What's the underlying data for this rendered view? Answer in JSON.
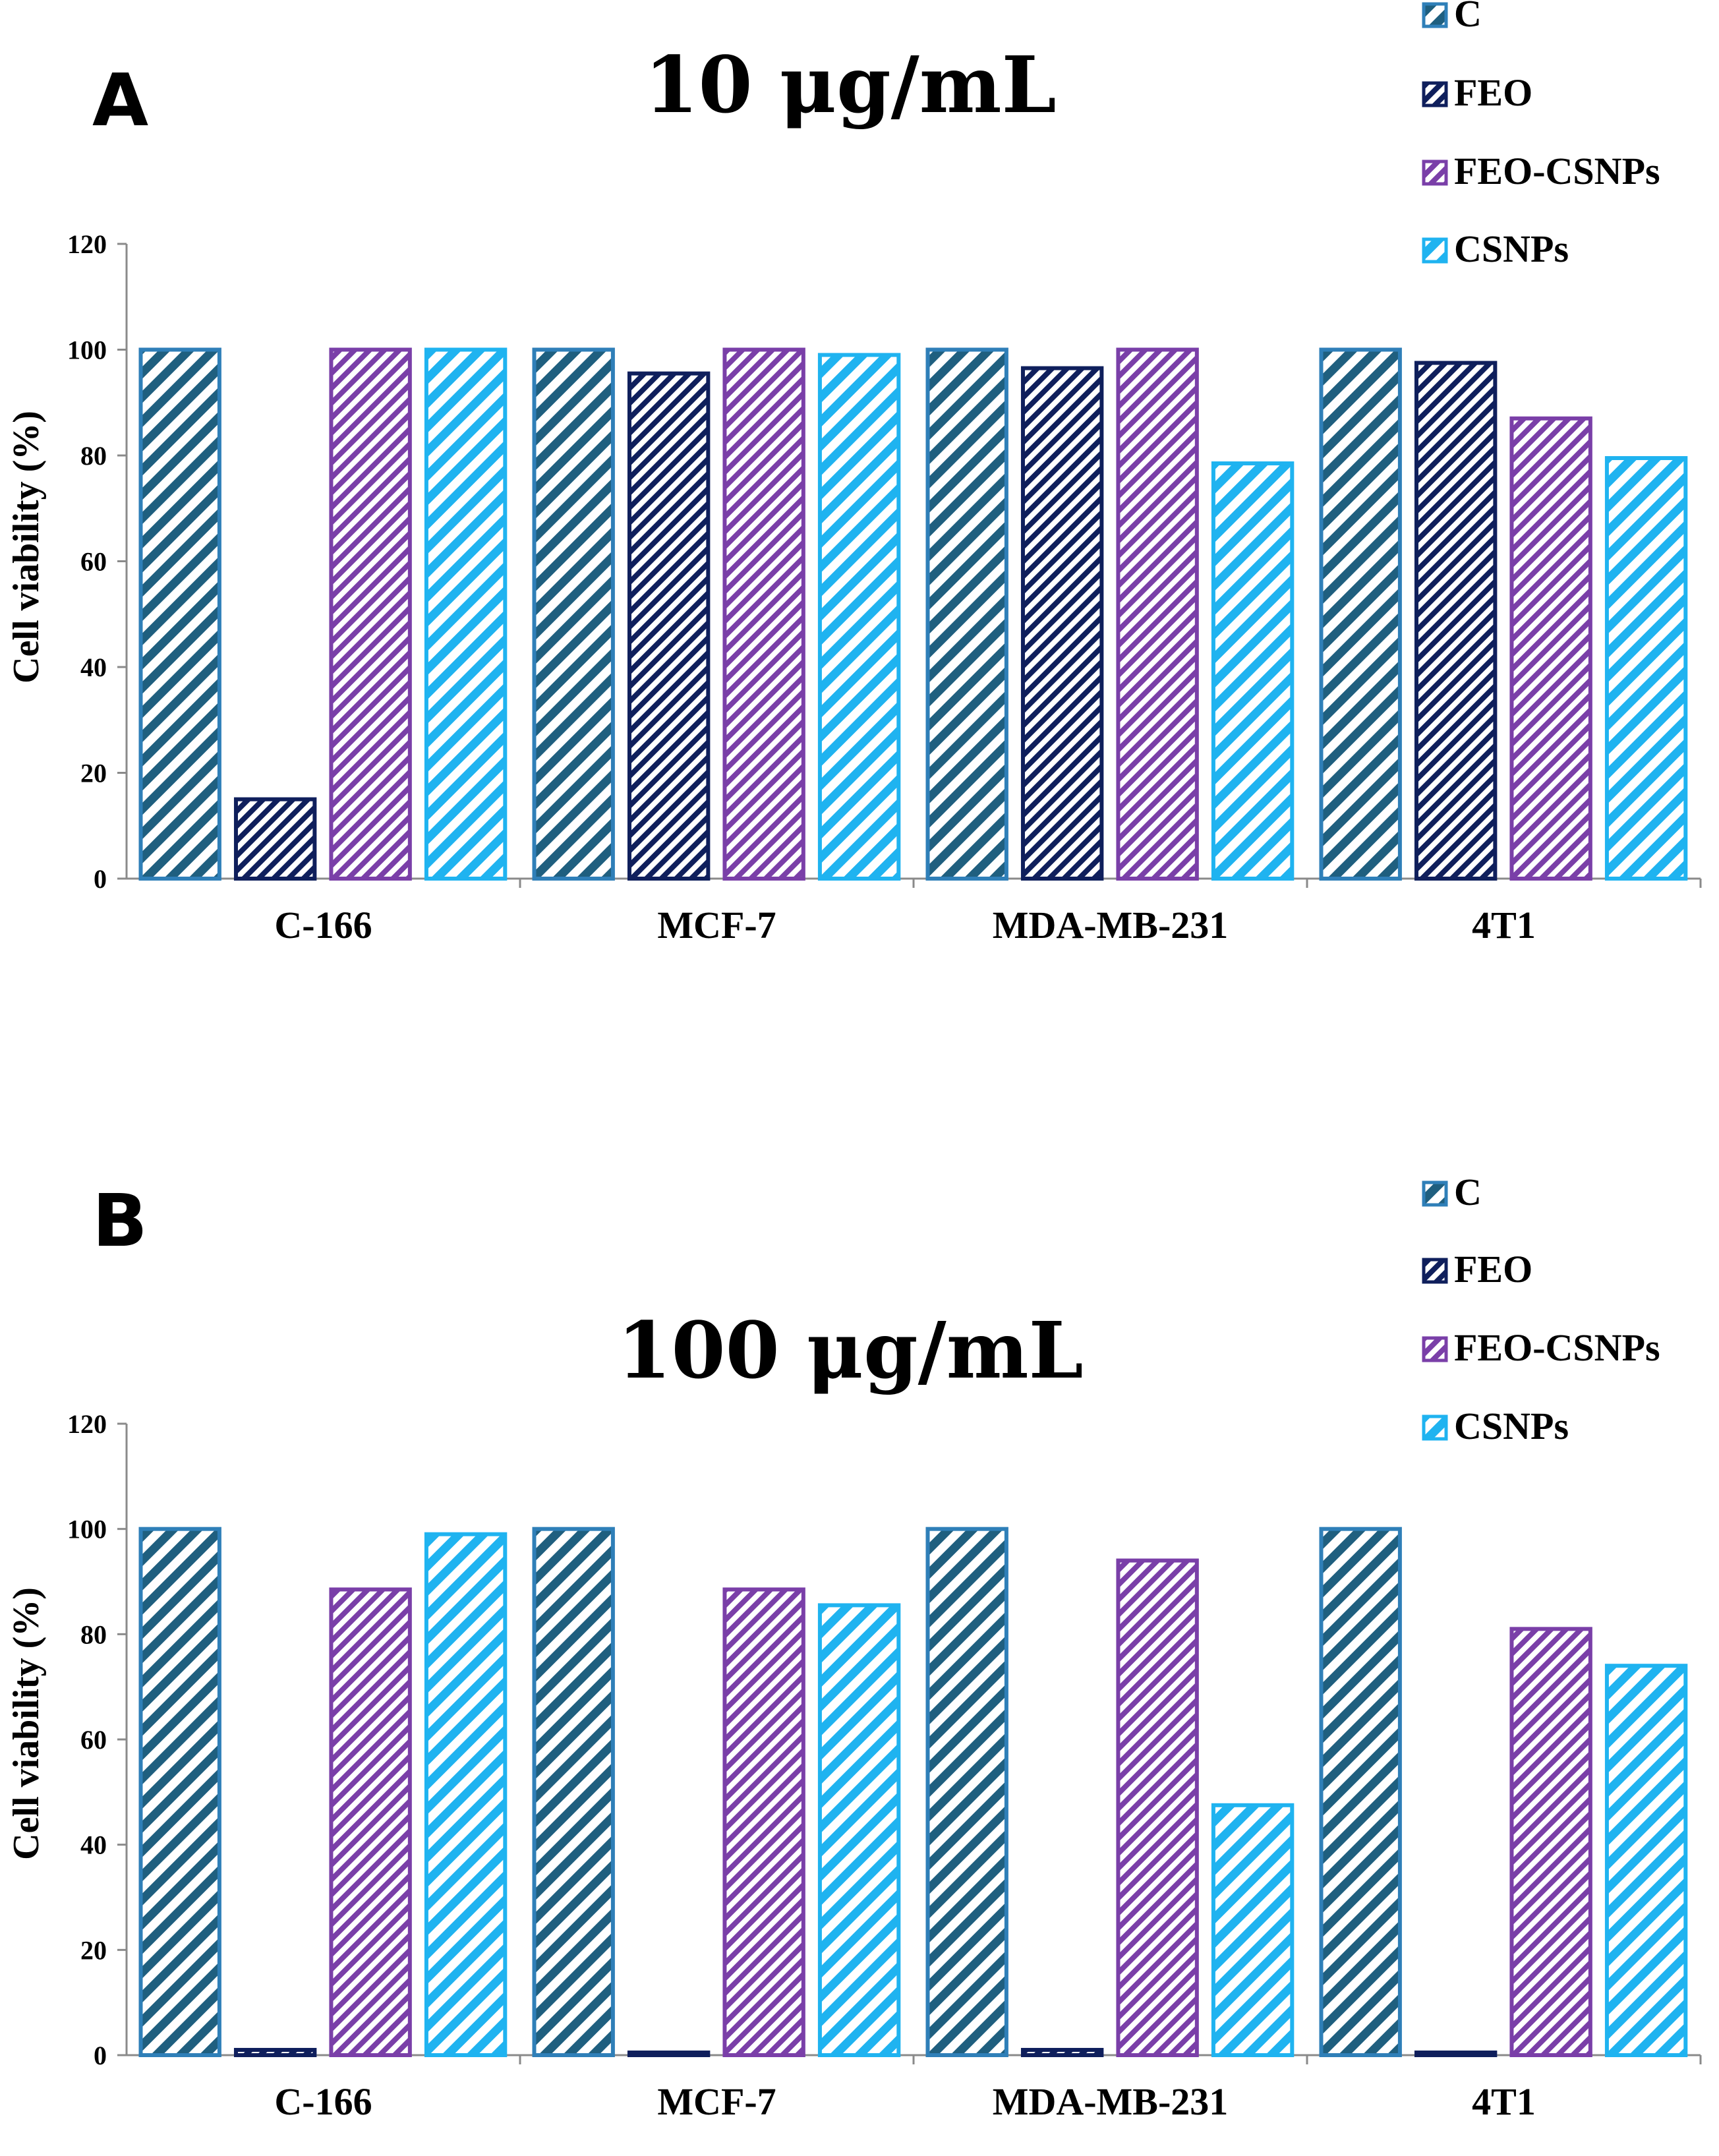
{
  "series_styles": [
    {
      "name": "C",
      "color": "#1f5f7f",
      "border": "#2f7fb8"
    },
    {
      "name": "FEO",
      "color": "#0f1f5c",
      "border": "#0f1f5c"
    },
    {
      "name": "FEO-CSNPs",
      "color": "#7a3fa8",
      "border": "#7a3fa8"
    },
    {
      "name": "CSNPs",
      "color": "#1fb3f0",
      "border": "#1fb3f0"
    }
  ],
  "chart_data": [
    {
      "type": "bar",
      "panel_label": "A",
      "title": "10 μg/mL",
      "xlabel": "",
      "ylabel": "Cell viability (%)",
      "ylim": [
        0,
        120
      ],
      "yticks": [
        0,
        20,
        40,
        60,
        80,
        100,
        120
      ],
      "categories": [
        "C-166",
        "MCF-7",
        "MDA-MB-231",
        "4T1"
      ],
      "series": [
        {
          "name": "C",
          "values": [
            100,
            100,
            100,
            100
          ]
        },
        {
          "name": "FEO",
          "values": [
            15,
            95.5,
            96.5,
            97.5
          ]
        },
        {
          "name": "FEO-CSNPs",
          "values": [
            100,
            100,
            100,
            87
          ]
        },
        {
          "name": "CSNPs",
          "values": [
            100,
            99,
            78.5,
            79.5
          ]
        }
      ],
      "legend": "top-right",
      "grid": false
    },
    {
      "type": "bar",
      "panel_label": "B",
      "title": "100 μg/mL",
      "xlabel": "",
      "ylabel": "Cell viability (%)",
      "ylim": [
        0,
        120
      ],
      "yticks": [
        0,
        20,
        40,
        60,
        80,
        100,
        120
      ],
      "categories": [
        "C-166",
        "MCF-7",
        "MDA-MB-231",
        "4T1"
      ],
      "series": [
        {
          "name": "C",
          "values": [
            100,
            100,
            100,
            100
          ]
        },
        {
          "name": "FEO",
          "values": [
            1,
            0.5,
            1,
            0.5
          ]
        },
        {
          "name": "FEO-CSNPs",
          "values": [
            88.5,
            88.5,
            94,
            81
          ]
        },
        {
          "name": "CSNPs",
          "values": [
            99,
            85.5,
            47.5,
            74
          ]
        }
      ],
      "legend": "top-right",
      "grid": false
    }
  ]
}
